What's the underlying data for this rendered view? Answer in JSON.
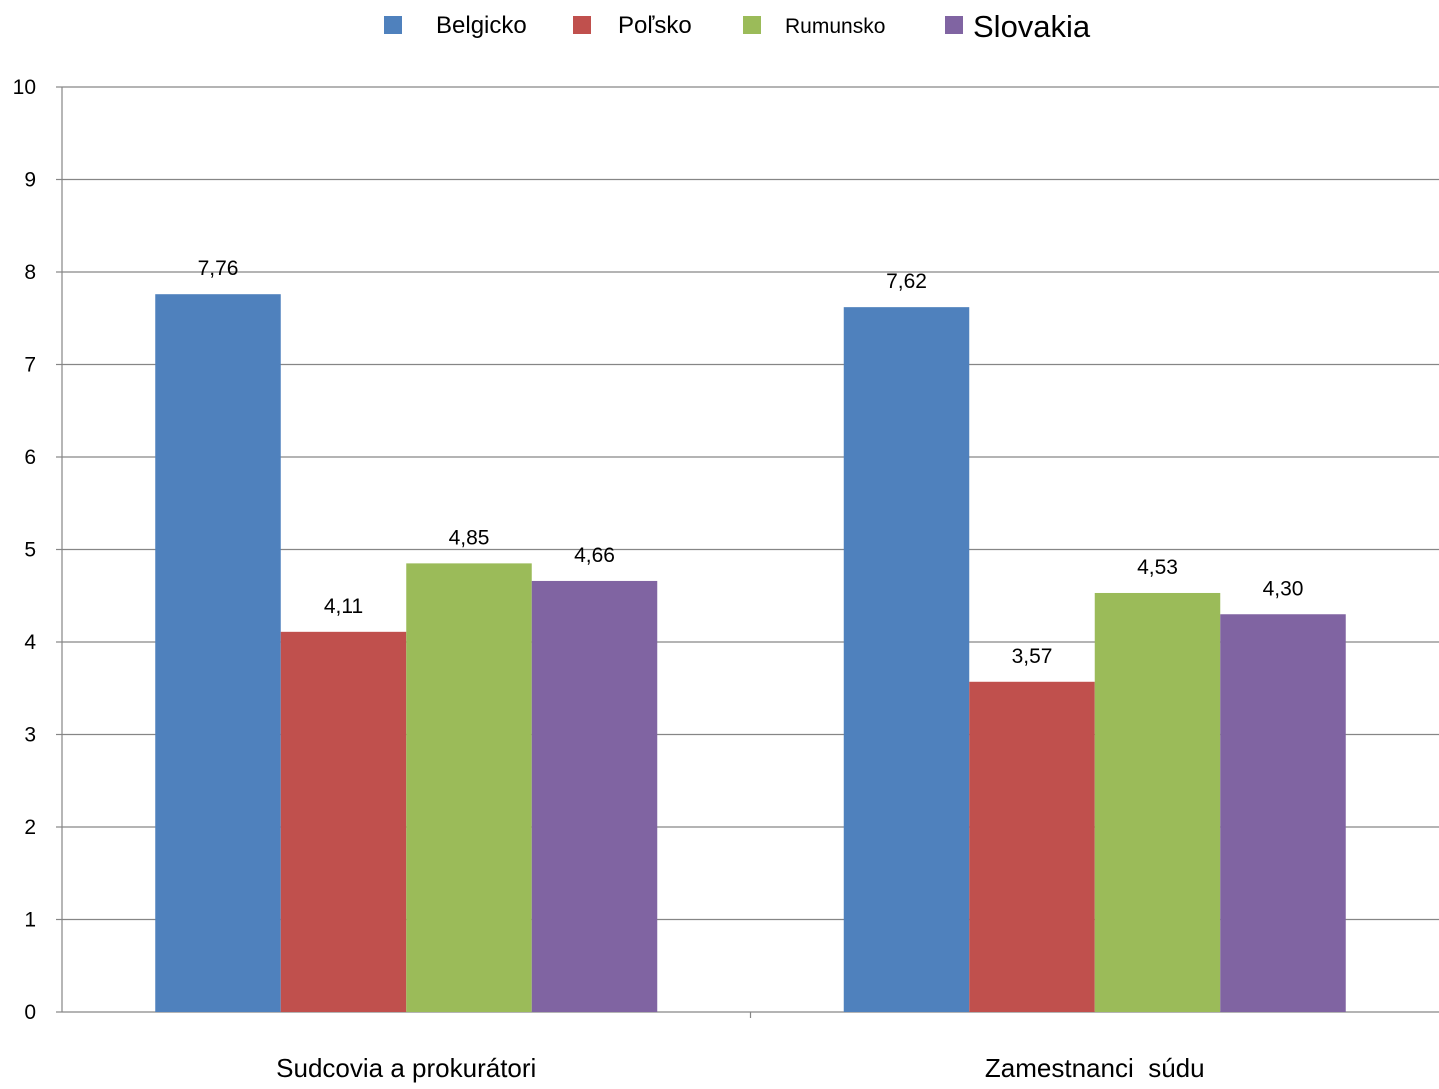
{
  "chart_data": {
    "type": "bar",
    "title": "",
    "xlabel": "",
    "ylabel": "",
    "categories": [
      "Sudcovia a prokurátori",
      "Zamestnanci  súdu"
    ],
    "series": [
      {
        "name": "Belgicko",
        "color": "#4F81BD",
        "values": [
          7.76,
          7.62
        ],
        "labels": [
          "7,76",
          "7,62"
        ]
      },
      {
        "name": "Poľsko",
        "color": "#C0504D",
        "values": [
          4.11,
          3.57
        ],
        "labels": [
          "4,11",
          "3,57"
        ]
      },
      {
        "name": "Rumunsko",
        "color": "#9BBB59",
        "values": [
          4.85,
          4.53
        ],
        "labels": [
          "4,85",
          "4,53"
        ]
      },
      {
        "name": "Slovakia",
        "color": "#8064A2",
        "values": [
          4.66,
          4.3
        ],
        "labels": [
          "4,66",
          "4,30"
        ]
      }
    ],
    "ylim": [
      0,
      10
    ],
    "yticks": [
      "0",
      "1",
      "2",
      "3",
      "4",
      "5",
      "6",
      "7",
      "8",
      "9",
      "10"
    ],
    "grid": true,
    "legend_position": "top"
  }
}
